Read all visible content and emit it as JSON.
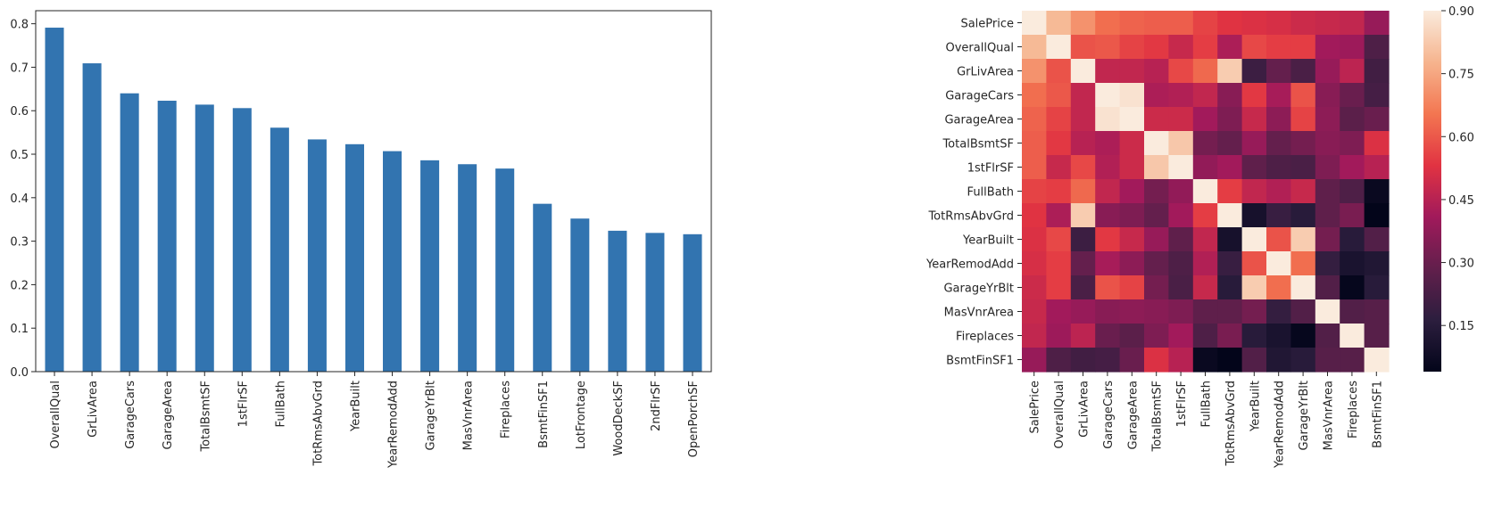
{
  "chart_data": [
    {
      "type": "bar",
      "categories": [
        "OverallQual",
        "GrLivArea",
        "GarageCars",
        "GarageArea",
        "TotalBsmtSF",
        "1stFlrSF",
        "FullBath",
        "TotRmsAbvGrd",
        "YearBuilt",
        "YearRemodAdd",
        "GarageYrBlt",
        "MasVnrArea",
        "Fireplaces",
        "BsmtFinSF1",
        "LotFrontage",
        "WoodDeckSF",
        "2ndFlrSF",
        "OpenPorchSF"
      ],
      "values": [
        0.791,
        0.709,
        0.64,
        0.623,
        0.614,
        0.606,
        0.561,
        0.534,
        0.523,
        0.507,
        0.486,
        0.477,
        0.467,
        0.386,
        0.352,
        0.324,
        0.319,
        0.316
      ],
      "yticks": [
        "0.0",
        "0.1",
        "0.2",
        "0.3",
        "0.4",
        "0.5",
        "0.6",
        "0.7",
        "0.8"
      ],
      "ylim": [
        0,
        0.83
      ],
      "bar_color": "#3274b0"
    },
    {
      "type": "heatmap",
      "labels": [
        "SalePrice",
        "OverallQual",
        "GrLivArea",
        "GarageCars",
        "GarageArea",
        "TotalBsmtSF",
        "1stFlrSF",
        "FullBath",
        "TotRmsAbvGrd",
        "YearBuilt",
        "YearRemodAdd",
        "GarageYrBlt",
        "MasVnrArea",
        "Fireplaces",
        "BsmtFinSF1"
      ],
      "matrix": [
        [
          1.0,
          0.79,
          0.71,
          0.64,
          0.62,
          0.61,
          0.61,
          0.56,
          0.53,
          0.52,
          0.51,
          0.49,
          0.48,
          0.47,
          0.39
        ],
        [
          0.79,
          1.0,
          0.59,
          0.6,
          0.56,
          0.54,
          0.48,
          0.55,
          0.43,
          0.57,
          0.55,
          0.55,
          0.41,
          0.4,
          0.24
        ],
        [
          0.71,
          0.59,
          1.0,
          0.47,
          0.47,
          0.45,
          0.57,
          0.63,
          0.83,
          0.2,
          0.29,
          0.23,
          0.39,
          0.46,
          0.21
        ],
        [
          0.64,
          0.6,
          0.47,
          1.0,
          0.88,
          0.43,
          0.44,
          0.47,
          0.36,
          0.54,
          0.42,
          0.59,
          0.36,
          0.3,
          0.22
        ],
        [
          0.62,
          0.56,
          0.47,
          0.88,
          1.0,
          0.49,
          0.49,
          0.41,
          0.34,
          0.48,
          0.37,
          0.56,
          0.37,
          0.27,
          0.3
        ],
        [
          0.61,
          0.54,
          0.45,
          0.43,
          0.49,
          1.0,
          0.82,
          0.32,
          0.29,
          0.39,
          0.29,
          0.32,
          0.36,
          0.34,
          0.52
        ],
        [
          0.61,
          0.48,
          0.57,
          0.44,
          0.49,
          0.82,
          1.0,
          0.38,
          0.41,
          0.28,
          0.24,
          0.23,
          0.34,
          0.41,
          0.45
        ],
        [
          0.56,
          0.55,
          0.63,
          0.47,
          0.41,
          0.32,
          0.38,
          1.0,
          0.55,
          0.47,
          0.44,
          0.48,
          0.28,
          0.24,
          0.06
        ],
        [
          0.53,
          0.43,
          0.83,
          0.36,
          0.34,
          0.29,
          0.41,
          0.55,
          1.0,
          0.1,
          0.19,
          0.15,
          0.28,
          0.33,
          0.04
        ],
        [
          0.52,
          0.57,
          0.2,
          0.54,
          0.48,
          0.39,
          0.28,
          0.47,
          0.1,
          1.0,
          0.59,
          0.83,
          0.32,
          0.15,
          0.25
        ],
        [
          0.51,
          0.55,
          0.29,
          0.42,
          0.37,
          0.29,
          0.24,
          0.44,
          0.19,
          0.59,
          1.0,
          0.64,
          0.18,
          0.11,
          0.13
        ],
        [
          0.49,
          0.55,
          0.23,
          0.59,
          0.56,
          0.32,
          0.23,
          0.48,
          0.15,
          0.83,
          0.64,
          1.0,
          0.25,
          0.05,
          0.15
        ],
        [
          0.48,
          0.41,
          0.39,
          0.36,
          0.37,
          0.36,
          0.34,
          0.28,
          0.28,
          0.32,
          0.18,
          0.25,
          1.0,
          0.25,
          0.26
        ],
        [
          0.47,
          0.4,
          0.46,
          0.3,
          0.27,
          0.34,
          0.41,
          0.24,
          0.33,
          0.15,
          0.11,
          0.05,
          0.25,
          1.0,
          0.26
        ],
        [
          0.39,
          0.24,
          0.21,
          0.22,
          0.3,
          0.52,
          0.45,
          0.06,
          0.04,
          0.25,
          0.13,
          0.15,
          0.26,
          0.26,
          1.0
        ]
      ],
      "colorbar_ticks": [
        "0.15",
        "0.30",
        "0.45",
        "0.60",
        "0.75",
        "0.90"
      ],
      "colorbar_tick_values": [
        0.15,
        0.3,
        0.45,
        0.6,
        0.75,
        0.9
      ],
      "vmin": 0.04,
      "vmax": 0.9,
      "colormap": "rocket",
      "colormap_stops": [
        "#03051a",
        "#2c1e3e",
        "#621f4c",
        "#a11a5b",
        "#e13342",
        "#f37651",
        "#f6b48e",
        "#faebdd"
      ]
    }
  ]
}
